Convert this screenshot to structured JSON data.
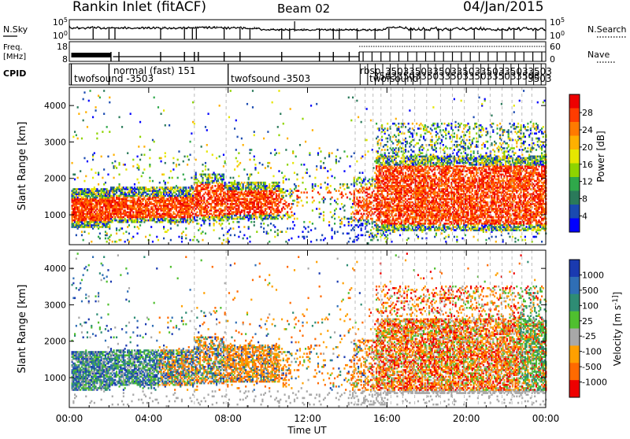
{
  "header": {
    "station": "Rankin Inlet (fitACF)",
    "beam": "Beam 02",
    "date": "04/Jan/2015"
  },
  "panels": {
    "nsky": {
      "left_label": "N.Sky",
      "right_label": "N.Search",
      "left_ticks": [
        "10^5",
        "10^0"
      ],
      "right_ticks": [
        "10^5",
        "10^0"
      ]
    },
    "freq": {
      "left_label_1": "Freq.",
      "left_label_2": "[MHz]",
      "right_label": "Nave",
      "left_ticks": [
        "18",
        "8"
      ],
      "right_ticks": [
        "60",
        "0"
      ]
    },
    "cpid": {
      "label": "CPID",
      "entries": [
        "twofsound -3503",
        "normal (fast) 151",
        "twofsound -3503",
        "rbsp",
        "twofsound",
        "3503"
      ]
    }
  },
  "chart_data": [
    {
      "type": "heatmap",
      "name": "power",
      "ylabel": "Slant Range [km]",
      "xlabel": "",
      "ylim": [
        180,
        4500
      ],
      "xlim_hours": [
        0,
        24
      ],
      "y_ticks": [
        1000,
        2000,
        3000,
        4000
      ],
      "colorbar": {
        "label": "Power [dB]",
        "ticks": [
          "28",
          "24",
          "20",
          "16",
          "12",
          "8",
          "4"
        ],
        "colors": [
          "#ee0000",
          "#ff3c00",
          "#ff7a00",
          "#ffb000",
          "#e6e600",
          "#8fd400",
          "#2fa84a",
          "#2a7a5a",
          "#1a4ab0",
          "#0000ff"
        ]
      }
    },
    {
      "type": "heatmap",
      "name": "velocity",
      "ylabel": "Slant Range [km]",
      "xlabel": "Time UT",
      "ylim": [
        180,
        4500
      ],
      "xlim_hours": [
        0,
        24
      ],
      "y_ticks": [
        1000,
        2000,
        3000,
        4000
      ],
      "x_tick_labels": [
        "00:00",
        "04:00",
        "08:00",
        "12:00",
        "16:00",
        "20:00",
        "00:00"
      ],
      "colorbar": {
        "label": "Velocity [m s^-1]",
        "ticks": [
          "1000",
          "500",
          "100",
          "25",
          "-25",
          "-100",
          "-500",
          "-1000"
        ],
        "colors": [
          "#1a3ab0",
          "#2f6eb5",
          "#2e8c74",
          "#4fbf2f",
          "#a8a8a8",
          "#ffa000",
          "#ff6a00",
          "#ee0000"
        ]
      }
    }
  ]
}
